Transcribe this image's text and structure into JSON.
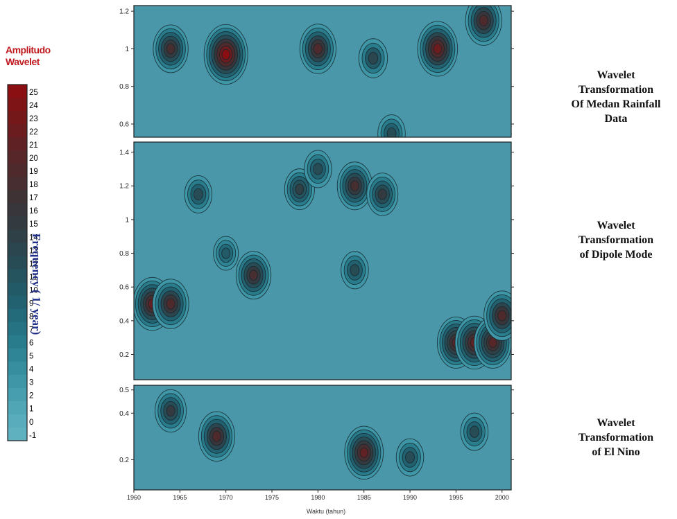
{
  "legend": {
    "title_line1": "Amplitudo",
    "title_line2": "Wavelet",
    "levels": [
      25,
      24,
      23,
      22,
      21,
      20,
      19,
      18,
      17,
      16,
      15,
      14,
      13,
      12,
      11,
      10,
      9,
      8,
      7,
      6,
      5,
      4,
      3,
      2,
      1,
      0,
      -1
    ],
    "colors": [
      "#8a0f12",
      "#7e1416",
      "#74181a",
      "#6a1c1e",
      "#5f2123",
      "#562628",
      "#4e2a2c",
      "#462e31",
      "#3f3235",
      "#38363a",
      "#343b40",
      "#2f4047",
      "#2b464f",
      "#284c56",
      "#25535e",
      "#225a67",
      "#226170",
      "#236a7a",
      "#257383",
      "#297c8c",
      "#2f8595",
      "#368e9e",
      "#3e96a6",
      "#479eae",
      "#50a6b5",
      "#58acbb",
      "#5fb1c0"
    ]
  },
  "y_axis_label": "Frequency ( 1/ year)",
  "x_axis_label": "Waktu (tahun)",
  "chart_data": [
    {
      "type": "heatmap",
      "title": "Wavelet Transformation Of Medan Rainfall Data",
      "title_lines": [
        "Wavelet",
        "Transformation",
        "Of Medan Rainfall",
        "Data"
      ],
      "x_range": [
        1960,
        2001
      ],
      "ylim": [
        0.53,
        1.23
      ],
      "y_ticks": [
        0.6,
        0.8,
        1,
        1.2
      ],
      "y_tick_labels": [
        "0.6",
        "0.8",
        "1",
        "1.2"
      ],
      "hotspots": [
        {
          "year": 1964,
          "freq": 1.0,
          "amplitude": 18
        },
        {
          "year": 1970,
          "freq": 0.97,
          "amplitude": 25
        },
        {
          "year": 1980,
          "freq": 1.0,
          "amplitude": 19
        },
        {
          "year": 1986,
          "freq": 0.95,
          "amplitude": 13
        },
        {
          "year": 1993,
          "freq": 1.0,
          "amplitude": 22
        },
        {
          "year": 1998,
          "freq": 1.15,
          "amplitude": 19
        },
        {
          "year": 1988,
          "freq": 0.55,
          "amplitude": 12
        }
      ]
    },
    {
      "type": "heatmap",
      "title": "Wavelet Transformation of Dipole Mode",
      "title_lines": [
        "Wavelet",
        "Transformation",
        "of Dipole Mode"
      ],
      "x_range": [
        1960,
        2001
      ],
      "ylim": [
        0.05,
        1.46
      ],
      "y_ticks": [
        0.2,
        0.4,
        0.6,
        0.8,
        1,
        1.2,
        1.4
      ],
      "y_tick_labels": [
        "0.2",
        "0.4",
        "0.6",
        "0.8",
        "1",
        "1.2",
        "1.4"
      ],
      "hotspots": [
        {
          "year": 1962,
          "freq": 0.5,
          "amplitude": 21
        },
        {
          "year": 1964,
          "freq": 0.5,
          "amplitude": 19
        },
        {
          "year": 1967,
          "freq": 1.15,
          "amplitude": 12
        },
        {
          "year": 1970,
          "freq": 0.8,
          "amplitude": 10
        },
        {
          "year": 1973,
          "freq": 0.67,
          "amplitude": 18
        },
        {
          "year": 1978,
          "freq": 1.18,
          "amplitude": 14
        },
        {
          "year": 1980,
          "freq": 1.3,
          "amplitude": 12
        },
        {
          "year": 1984,
          "freq": 1.2,
          "amplitude": 18
        },
        {
          "year": 1984,
          "freq": 0.7,
          "amplitude": 12
        },
        {
          "year": 1987,
          "freq": 1.15,
          "amplitude": 15
        },
        {
          "year": 1995,
          "freq": 0.27,
          "amplitude": 20
        },
        {
          "year": 1997,
          "freq": 0.27,
          "amplitude": 21
        },
        {
          "year": 1999,
          "freq": 0.27,
          "amplitude": 20
        },
        {
          "year": 2000,
          "freq": 0.43,
          "amplitude": 19
        }
      ]
    },
    {
      "type": "heatmap",
      "title": "Wavelet Transformation of El Nino",
      "title_lines": [
        "Wavelet",
        "Transformation",
        "of  El Nino"
      ],
      "x_range": [
        1960,
        2001
      ],
      "ylim": [
        0.07,
        0.52
      ],
      "y_ticks": [
        0.2,
        0.4,
        0.5
      ],
      "y_tick_labels": [
        "0.2",
        "0.4",
        "0.5"
      ],
      "x_ticks": [
        1960,
        1965,
        1970,
        1975,
        1980,
        1985,
        1990,
        1995,
        2000
      ],
      "x_tick_labels": [
        "1960",
        "1965",
        "1970",
        "1975",
        "1980",
        "1985",
        "1990",
        "1995",
        "2000"
      ],
      "hotspots": [
        {
          "year": 1964,
          "freq": 0.41,
          "amplitude": 15
        },
        {
          "year": 1969,
          "freq": 0.3,
          "amplitude": 19
        },
        {
          "year": 1985,
          "freq": 0.23,
          "amplitude": 21
        },
        {
          "year": 1990,
          "freq": 0.21,
          "amplitude": 12
        },
        {
          "year": 1997,
          "freq": 0.32,
          "amplitude": 12
        }
      ]
    }
  ]
}
